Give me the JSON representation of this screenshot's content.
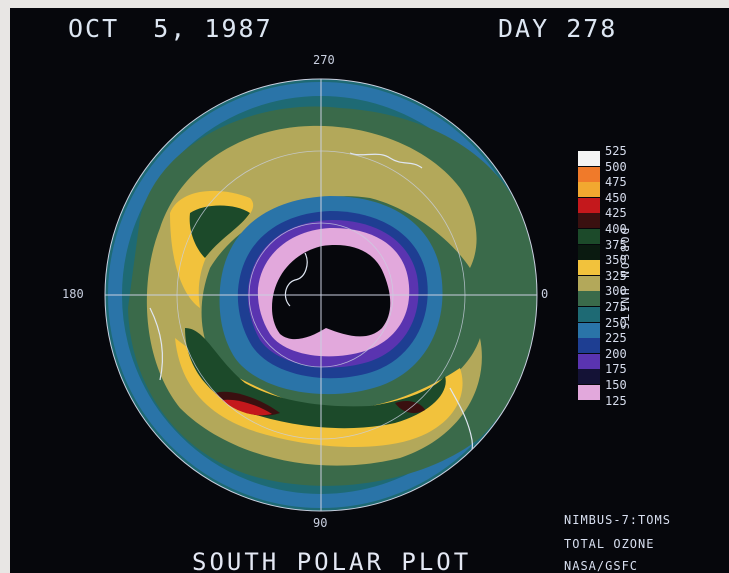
{
  "header": {
    "date": "OCT  5, 1987",
    "day": "DAY 278"
  },
  "map": {
    "lon_labels": {
      "top": "270",
      "left": "180",
      "right": "0",
      "bottom": "90"
    },
    "title": "SOUTH POLAR PLOT"
  },
  "legend": {
    "unit": "DOBSON UNITS",
    "levels": [
      {
        "value": "525",
        "color": "#f4f4f4"
      },
      {
        "value": "500",
        "color": "#f07a2a"
      },
      {
        "value": "475",
        "color": "#f2a830"
      },
      {
        "value": "450",
        "color": "#c4181c"
      },
      {
        "value": "425",
        "color": "#3a1010"
      },
      {
        "value": "400",
        "color": "#1c4a2a"
      },
      {
        "value": "375",
        "color": "#0a1a10"
      },
      {
        "value": "350",
        "color": "#f2c23c"
      },
      {
        "value": "325",
        "color": "#b3a85a"
      },
      {
        "value": "300",
        "color": "#3a6a4a"
      },
      {
        "value": "275",
        "color": "#1e6a74"
      },
      {
        "value": "250",
        "color": "#2a74a8"
      },
      {
        "value": "225",
        "color": "#1e3e92"
      },
      {
        "value": "200",
        "color": "#5a34b0"
      },
      {
        "value": "175",
        "color": "#141236"
      },
      {
        "value": "150",
        "color": "#e2a8dc"
      },
      {
        "value": "125",
        "color": ""
      }
    ]
  },
  "footer": {
    "line1": "NIMBUS-7:TOMS",
    "line2": "TOTAL OZONE",
    "line3": "NASA/GSFC"
  }
}
